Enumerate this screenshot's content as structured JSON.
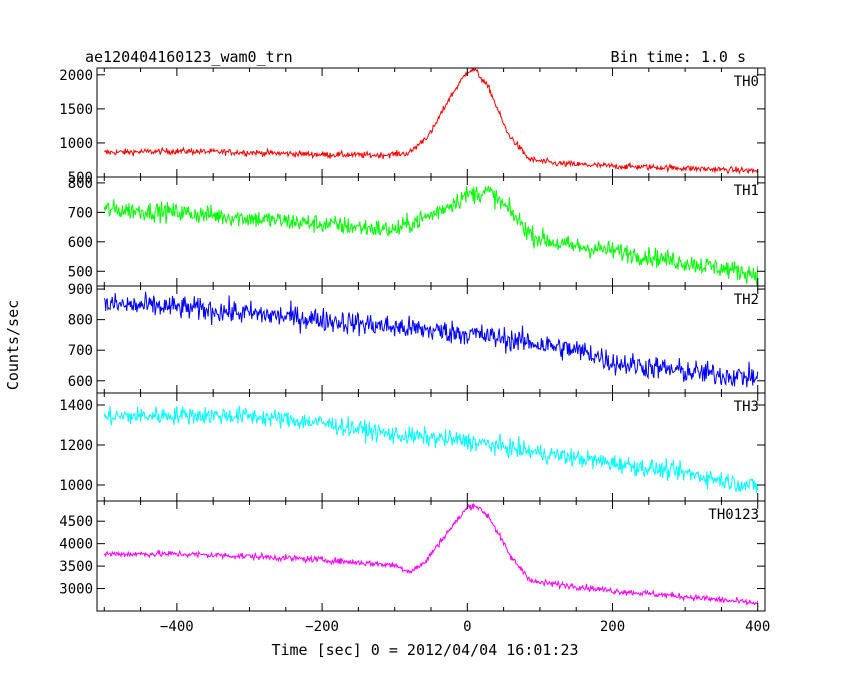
{
  "header": {
    "left_title": "ae120404160123_wam0_trn",
    "right_title": "Bin time: 1.0 s"
  },
  "axes": {
    "xlabel": "Time [sec] 0 = 2012/04/04 16:01:23",
    "ylabel": "Counts/sec",
    "x_ticks": [
      -400,
      -200,
      0,
      200,
      400
    ],
    "x_tick_labels": [
      "−400",
      "−200",
      "0",
      "200",
      "400"
    ]
  },
  "chart_data": {
    "type": "line",
    "xlim": [
      -510,
      410
    ],
    "grid": false,
    "panels": [
      {
        "name": "TH0",
        "color": "#ff0000",
        "ylim": [
          500,
          2100
        ],
        "yticks": [
          500,
          1000,
          1500,
          2000
        ],
        "ytick_labels": [
          "500",
          "1000",
          "1500",
          "2000"
        ],
        "keypoints": [
          [
            -500,
            860
          ],
          [
            -400,
            880
          ],
          [
            -300,
            860
          ],
          [
            -200,
            830
          ],
          [
            -120,
            820
          ],
          [
            -80,
            850
          ],
          [
            -50,
            1150
          ],
          [
            -25,
            1650
          ],
          [
            0,
            2050
          ],
          [
            10,
            2080
          ],
          [
            30,
            1800
          ],
          [
            55,
            1150
          ],
          [
            85,
            760
          ],
          [
            120,
            700
          ],
          [
            200,
            660
          ],
          [
            300,
            630
          ],
          [
            400,
            590
          ]
        ],
        "noise": 45
      },
      {
        "name": "TH1",
        "color": "#00ff00",
        "ylim": [
          450,
          820
        ],
        "yticks": [
          500,
          600,
          700,
          800
        ],
        "ytick_labels": [
          "500",
          "600",
          "700",
          "800"
        ],
        "keypoints": [
          [
            -500,
            710
          ],
          [
            -400,
            700
          ],
          [
            -300,
            680
          ],
          [
            -200,
            660
          ],
          [
            -100,
            640
          ],
          [
            -50,
            690
          ],
          [
            0,
            760
          ],
          [
            30,
            770
          ],
          [
            60,
            700
          ],
          [
            90,
            620
          ],
          [
            130,
            590
          ],
          [
            200,
            570
          ],
          [
            300,
            530
          ],
          [
            400,
            490
          ]
        ],
        "noise": 32
      },
      {
        "name": "TH2",
        "color": "#0000ff",
        "ylim": [
          560,
          910
        ],
        "yticks": [
          600,
          700,
          800,
          900
        ],
        "ytick_labels": [
          "600",
          "700",
          "800",
          "900"
        ],
        "keypoints": [
          [
            -500,
            850
          ],
          [
            -400,
            840
          ],
          [
            -300,
            820
          ],
          [
            -200,
            800
          ],
          [
            -100,
            775
          ],
          [
            0,
            755
          ],
          [
            100,
            720
          ],
          [
            170,
            690
          ],
          [
            200,
            660
          ],
          [
            300,
            630
          ],
          [
            400,
            610
          ]
        ],
        "noise": 38
      },
      {
        "name": "TH3",
        "color": "#00ffff",
        "ylim": [
          920,
          1460
        ],
        "yticks": [
          1000,
          1200,
          1400
        ],
        "ytick_labels": [
          "1000",
          "1200",
          "1400"
        ],
        "keypoints": [
          [
            -500,
            1340
          ],
          [
            -400,
            1350
          ],
          [
            -300,
            1345
          ],
          [
            -200,
            1310
          ],
          [
            -100,
            1250
          ],
          [
            0,
            1220
          ],
          [
            100,
            1160
          ],
          [
            200,
            1110
          ],
          [
            300,
            1060
          ],
          [
            400,
            990
          ]
        ],
        "noise": 45
      },
      {
        "name": "TH0123",
        "color": "#ff00ff",
        "ylim": [
          2500,
          4950
        ],
        "yticks": [
          3000,
          3500,
          4000,
          4500
        ],
        "ytick_labels": [
          "3000",
          "3500",
          "4000",
          "4500"
        ],
        "keypoints": [
          [
            -500,
            3770
          ],
          [
            -400,
            3770
          ],
          [
            -300,
            3720
          ],
          [
            -200,
            3640
          ],
          [
            -100,
            3520
          ],
          [
            -80,
            3380
          ],
          [
            -60,
            3550
          ],
          [
            -30,
            4200
          ],
          [
            0,
            4800
          ],
          [
            10,
            4870
          ],
          [
            30,
            4600
          ],
          [
            60,
            3700
          ],
          [
            90,
            3150
          ],
          [
            150,
            3050
          ],
          [
            200,
            2950
          ],
          [
            300,
            2820
          ],
          [
            400,
            2670
          ]
        ],
        "noise": 70
      }
    ]
  }
}
